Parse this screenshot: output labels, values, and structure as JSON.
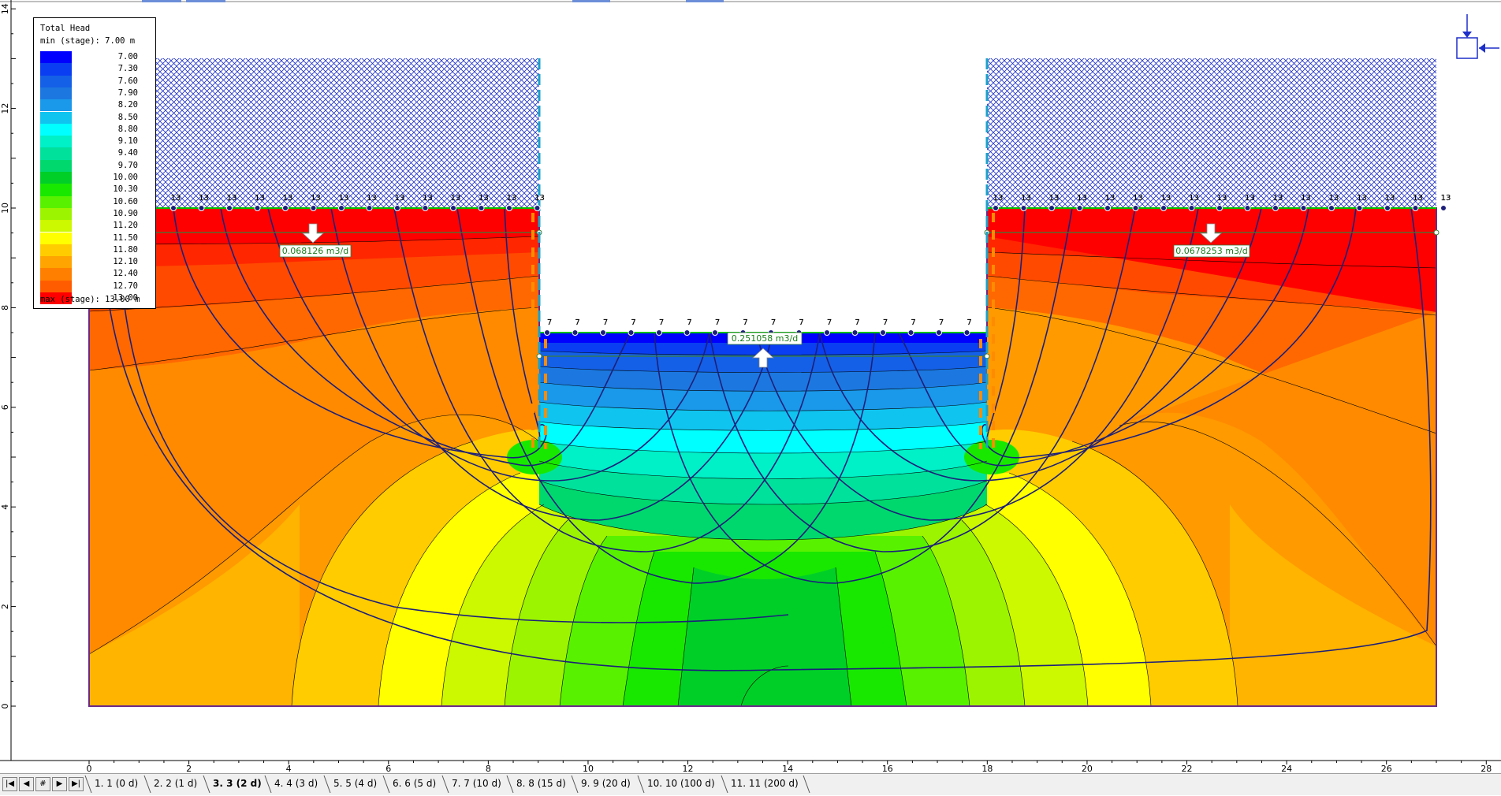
{
  "legend": {
    "title": "Total Head",
    "min_label": "min (stage): 7.00 m",
    "max_label": "max (stage): 13.00 m",
    "levels": [
      "7.00",
      "7.30",
      "7.60",
      "7.90",
      "8.20",
      "8.50",
      "8.80",
      "9.10",
      "9.40",
      "9.70",
      "10.00",
      "10.30",
      "10.60",
      "10.90",
      "11.20",
      "11.50",
      "11.80",
      "12.10",
      "12.40",
      "12.70",
      "13.00"
    ],
    "colors": [
      "#0000ff",
      "#0a3ef2",
      "#1460e6",
      "#1c78e0",
      "#1a98ea",
      "#10c4f0",
      "#00ffff",
      "#00f0c8",
      "#00e29c",
      "#00d86e",
      "#00cf28",
      "#18e800",
      "#58f200",
      "#9cf400",
      "#ccf800",
      "#ffff00",
      "#ffcc00",
      "#ffa400",
      "#ff8000",
      "#ff5c00",
      "#ff0000"
    ]
  },
  "flux": {
    "left": "0.068126 m3/d",
    "center": "0.251058 m3/d",
    "right": "0.0678253 m3/d"
  },
  "boundary": {
    "upstream_head": "13",
    "downstream_head": "7"
  },
  "axes": {
    "x_ticks": [
      "0",
      "2",
      "4",
      "6",
      "8",
      "10",
      "12",
      "14",
      "16",
      "18",
      "20",
      "22",
      "24",
      "26",
      "28"
    ],
    "y_ticks": [
      "0",
      "2",
      "4",
      "6",
      "8",
      "10",
      "12",
      "14"
    ]
  },
  "nav": {
    "first": "|◀",
    "prev": "◀",
    "goto": "#",
    "next": "▶",
    "last": "▶|"
  },
  "stages": [
    {
      "label": "1. 1 (0 d)"
    },
    {
      "label": "2. 2 (1 d)"
    },
    {
      "label": "3. 3 (2 d)",
      "active": true
    },
    {
      "label": "4. 4 (3 d)"
    },
    {
      "label": "5. 5 (4 d)"
    },
    {
      "label": "6. 6 (5 d)"
    },
    {
      "label": "7. 7 (10 d)"
    },
    {
      "label": "8. 8 (15 d)"
    },
    {
      "label": "9. 9 (20 d)"
    },
    {
      "label": "10. 10 (100 d)"
    },
    {
      "label": "11. 11 (200 d)"
    }
  ]
}
